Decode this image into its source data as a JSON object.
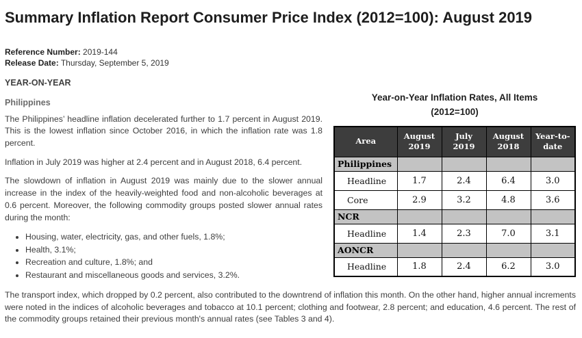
{
  "page": {
    "title": "Summary Inflation Report Consumer Price Index (2012=100): August 2019",
    "meta": {
      "reference_label": "Reference Number:",
      "reference_value": "2019-144",
      "release_label": "Release Date:",
      "release_value": "Thursday, September 5, 2019"
    },
    "section_heading": "YEAR-ON-YEAR",
    "subsection_heading": "Philippines",
    "paragraphs": [
      "The Philippines’ headline inflation decelerated further to 1.7 percent in August 2019. This is the lowest inflation since October 2016, in which the inflation rate was 1.8 percent.",
      "Inflation in July 2019 was higher at 2.4 percent and in August 2018, 6.4 percent.",
      "The slowdown of inflation in August 2019 was mainly due to the slower annual increase in the index of the heavily-weighted food and non-alcoholic beverages at 0.6 percent. Moreover, the following commodity groups posted slower annual rates during the month:"
    ],
    "bullets": [
      "Housing, water, electricity, gas, and other fuels, 1.8%;",
      "Health, 3.1%;",
      "Recreation and culture, 1.8%; and",
      "Restaurant and miscellaneous goods and services, 3.2%."
    ],
    "closing_paragraph": "The transport index, which dropped by 0.2 percent, also contributed to the downtrend of inflation this month. On the other hand, higher annual increments were noted in the indices of alcoholic beverages and tobacco at 10.1 percent; clothing and footwear, 2.8 percent; and education, 4.6 percent. The rest of the commodity groups retained their previous month's annual rates (see Tables 3 and 4)."
  },
  "chart_data": {
    "type": "table",
    "title": "Year-on-Year Inflation Rates, All Items",
    "subtitle": "(2012=100)",
    "columns": [
      "Area",
      "August 2019",
      "July 2019",
      "August 2018",
      "Year-to-date"
    ],
    "rows": [
      {
        "area": "Philippines",
        "type": "section",
        "values": [
          "",
          "",
          "",
          ""
        ]
      },
      {
        "area": "Headline",
        "type": "data",
        "values": [
          "1.7",
          "2.4",
          "6.4",
          "3.0"
        ]
      },
      {
        "area": "Core",
        "type": "data",
        "values": [
          "2.9",
          "3.2",
          "4.8",
          "3.6"
        ]
      },
      {
        "area": "NCR",
        "type": "section",
        "values": [
          "",
          "",
          "",
          ""
        ]
      },
      {
        "area": "Headline",
        "type": "data",
        "values": [
          "1.4",
          "2.3",
          "7.0",
          "3.1"
        ]
      },
      {
        "area": "AONCR",
        "type": "section",
        "values": [
          "",
          "",
          "",
          ""
        ]
      },
      {
        "area": "Headline",
        "type": "data",
        "values": [
          "1.8",
          "2.4",
          "6.2",
          "3.0"
        ]
      }
    ],
    "header_bg": "#3d3d3d",
    "section_row_bg": "#c3c3c3",
    "border_color": "#000000"
  }
}
